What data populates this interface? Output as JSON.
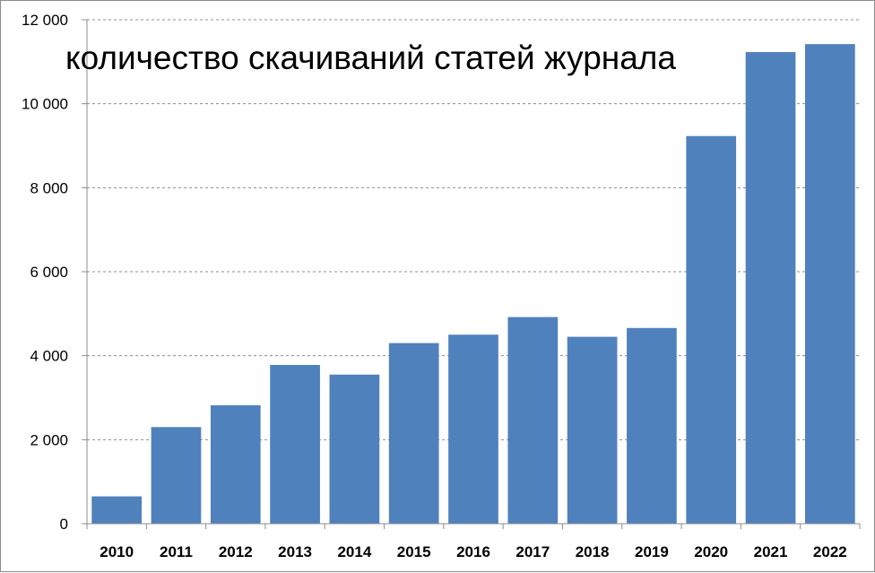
{
  "chart_data": {
    "type": "bar",
    "title": "количество скачиваний статей журнала",
    "categories": [
      "2010",
      "2011",
      "2012",
      "2013",
      "2014",
      "2015",
      "2016",
      "2017",
      "2018",
      "2019",
      "2020",
      "2021",
      "2022"
    ],
    "values": [
      650,
      2300,
      2820,
      3780,
      3550,
      4300,
      4500,
      4920,
      4450,
      4660,
      9230,
      11230,
      11420
    ],
    "ylim": [
      0,
      12000
    ],
    "yticks": [
      0,
      2000,
      4000,
      6000,
      8000,
      10000,
      12000
    ],
    "ytick_labels": [
      "0",
      "2 000",
      "4 000",
      "6 000",
      "8 000",
      "10 000",
      "12 000"
    ],
    "grid": true,
    "bar_color": "#4f81bd",
    "grid_color": "#8c8c8c"
  }
}
